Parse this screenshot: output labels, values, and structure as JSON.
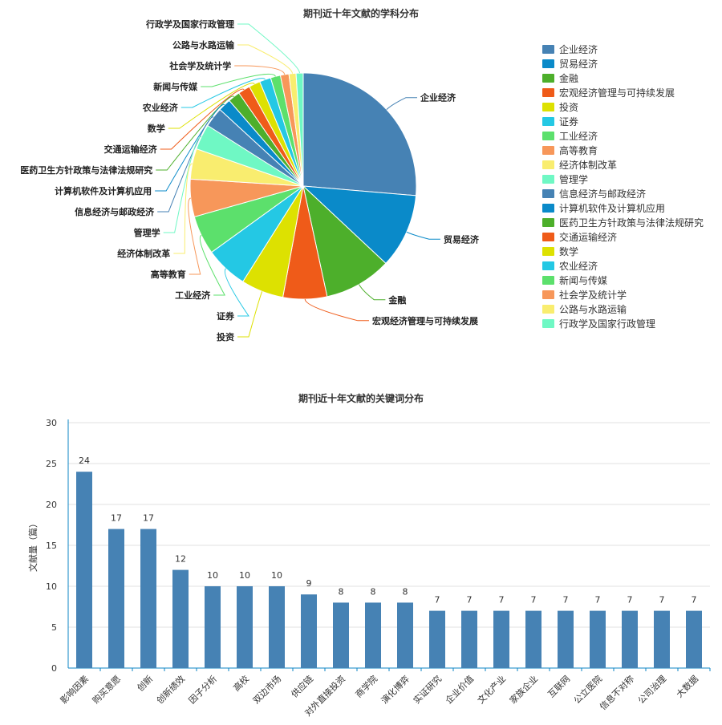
{
  "pie_title": "期刊近十年文献的学科分布",
  "bar_title": "期刊近十年文献的关键词分布",
  "colors": {
    "palette": [
      "#4682b4",
      "#0a8ac9",
      "#4daf2b",
      "#ef5b19",
      "#dde101",
      "#24c8e4",
      "#5ce06c",
      "#f7975a",
      "#f9ed6f",
      "#6ff8c4"
    ],
    "bar": "#4682b4",
    "axis": "#0d86c6"
  },
  "chart_data": [
    {
      "type": "pie",
      "title": "期刊近十年文献的学科分布",
      "legend_position": "right",
      "slices": [
        {
          "name": "企业经济",
          "value": 26
        },
        {
          "name": "贸易经济",
          "value": 10.5
        },
        {
          "name": "金融",
          "value": 9.5
        },
        {
          "name": "宏观经济管理与可持续发展",
          "value": 6.2
        },
        {
          "name": "投资",
          "value": 6
        },
        {
          "name": "证券",
          "value": 6
        },
        {
          "name": "工业经济",
          "value": 5.5
        },
        {
          "name": "高等教育",
          "value": 5.3
        },
        {
          "name": "经济体制改革",
          "value": 4.3
        },
        {
          "name": "管理学",
          "value": 3.6
        },
        {
          "name": "信息经济与邮政经济",
          "value": 2.8
        },
        {
          "name": "计算机软件及计算机应用",
          "value": 1.8
        },
        {
          "name": "医药卫生方针政策与法律法规研究",
          "value": 1.7
        },
        {
          "name": "交通运输经济",
          "value": 1.7
        },
        {
          "name": "数学",
          "value": 1.6
        },
        {
          "name": "农业经济",
          "value": 1.6
        },
        {
          "name": "新闻与传媒",
          "value": 1.4
        },
        {
          "name": "社会学及统计学",
          "value": 1.2
        },
        {
          "name": "公路与水路运输",
          "value": 1
        },
        {
          "name": "行政学及国家行政管理",
          "value": 1
        }
      ]
    },
    {
      "type": "bar",
      "title": "期刊近十年文献的关键词分布",
      "ylabel": "文献量（篇）",
      "ylim": [
        0,
        30
      ],
      "yticks": [
        0,
        5,
        10,
        15,
        20,
        25,
        30
      ],
      "grid": true,
      "categories": [
        "影响因素",
        "购买意愿",
        "创新",
        "创新绩效",
        "因子分析",
        "高校",
        "双边市场",
        "供应链",
        "对外直接投资",
        "商学院",
        "演化博弈",
        "实证研究",
        "企业价值",
        "文化产业",
        "家族企业",
        "互联网",
        "公立医院",
        "信息不对称",
        "公司治理",
        "大数据"
      ],
      "values": [
        24,
        17,
        17,
        12,
        10,
        10,
        10,
        9,
        8,
        8,
        8,
        7,
        7,
        7,
        7,
        7,
        7,
        7,
        7,
        7
      ]
    }
  ]
}
